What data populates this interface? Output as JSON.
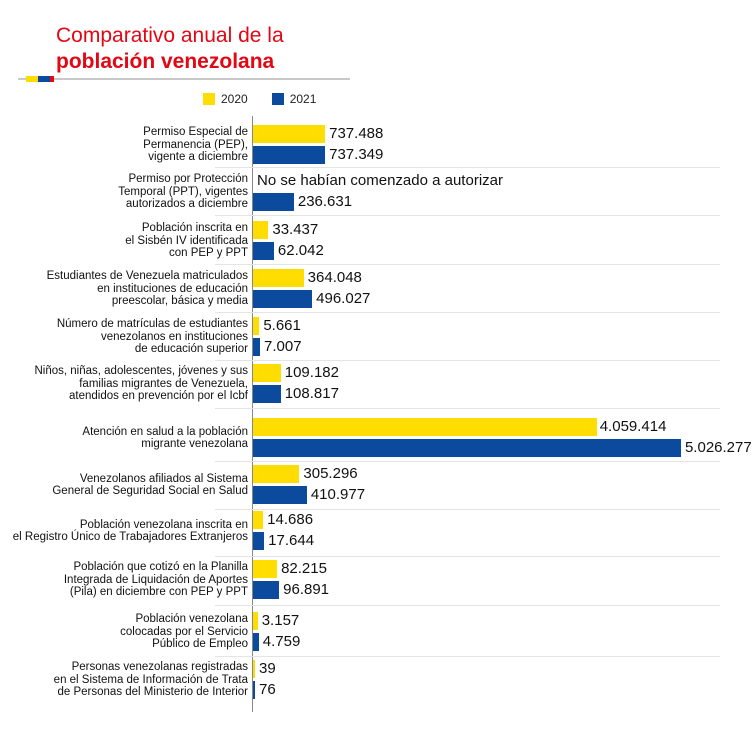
{
  "header": {
    "title_line1": "Comparativo anual de la",
    "title_line2": "población venezolana"
  },
  "colors": {
    "y2020": "#ffdd00",
    "y2021": "#0b4a9c",
    "title": "#e30613"
  },
  "chart_data": {
    "type": "bar",
    "orientation": "horizontal",
    "title": "Comparativo anual de la población venezolana",
    "legend": [
      "2020",
      "2021"
    ],
    "legend_position": "top",
    "categories": [
      "Permiso Especial de Permanencia (PEP), vigente a diciembre",
      "Permiso por Protección Temporal (PPT), vigentes autorizados a diciembre",
      "Población inscrita en el Sisbén IV identificada con PEP y PPT",
      "Estudiantes de Venezuela matriculados en instituciones de educación preescolar, básica y media",
      "Número de matrículas de estudiantes venezolanos en instituciones de educación superior",
      "Niños, niñas, adolescentes, jóvenes y sus familias migrantes de Venezuela, atendidos en prevención por el Icbf",
      "Atención en salud a la población migrante venezolana",
      "Venezolanos afiliados al Sistema General de Seguridad Social en Salud",
      "Población venezolana inscrita en el Registro Único de Trabajadores Extranjeros",
      "Población que cotizó en la Planilla Integrada de Liquidación de Aportes (Pila) en diciembre con PEP y PPT",
      "Población venezolana colocadas por el Servicio Público de Empleo",
      "Personas venezolanas registradas en el Sistema de Información de Trata de Personas del Ministerio de Interior"
    ],
    "label_lines": [
      [
        "Permiso Especial de",
        "Permanencia (PEP),",
        "vigente a diciembre"
      ],
      [
        "Permiso por Protección",
        "Temporal (PPT), vigentes",
        "autorizados a diciembre"
      ],
      [
        "Población inscrita en",
        "el Sisbén IV identificada",
        "con PEP y PPT"
      ],
      [
        "Estudiantes de Venezuela matriculados",
        "en instituciones de educación",
        "preescolar, básica y media"
      ],
      [
        "Número de matrículas de estudiantes",
        "venezolanos en instituciones",
        "de educación superior"
      ],
      [
        "Niños, niñas, adolescentes, jóvenes y sus",
        "familias migrantes de Venezuela,",
        "atendidos en prevención por el Icbf"
      ],
      [
        "Atención en salud a la población",
        "migrante venezolana"
      ],
      [
        "Venezolanos afiliados al Sistema",
        "General de Seguridad Social en Salud"
      ],
      [
        "Población venezolana inscrita en",
        "el Registro Único de Trabajadores Extranjeros"
      ],
      [
        "Población que cotizó en la Planilla",
        "Integrada de Liquidación de Aportes",
        "(Pila) en diciembre con PEP y PPT"
      ],
      [
        "Población venezolana",
        "colocadas por el Servicio",
        "Público de Empleo"
      ],
      [
        "Personas venezolanas registradas",
        "en el Sistema de Información de Trata",
        "de Personas del Ministerio de Interior"
      ]
    ],
    "series": [
      {
        "name": "2020",
        "values": [
          737488,
          null,
          33437,
          364048,
          5661,
          109182,
          4059414,
          305296,
          14686,
          82215,
          3157,
          39
        ],
        "labels": [
          "737.488",
          "No se habían comenzado a autorizar",
          "33.437",
          "364.048",
          "5.661",
          "109.182",
          "4.059.414",
          "305.296",
          "14.686",
          "82.215",
          "3.157",
          "39"
        ]
      },
      {
        "name": "2021",
        "values": [
          737349,
          236631,
          62042,
          496027,
          7007,
          108817,
          5026277,
          410977,
          17644,
          96891,
          4759,
          76
        ],
        "labels": [
          "737.349",
          "236.631",
          "62.042",
          "496.027",
          "7.007",
          "108.817",
          "5.026.277",
          "410.977",
          "17.644",
          "96.891",
          "4.759",
          "76"
        ]
      }
    ],
    "xlabel": "",
    "ylabel": ""
  }
}
